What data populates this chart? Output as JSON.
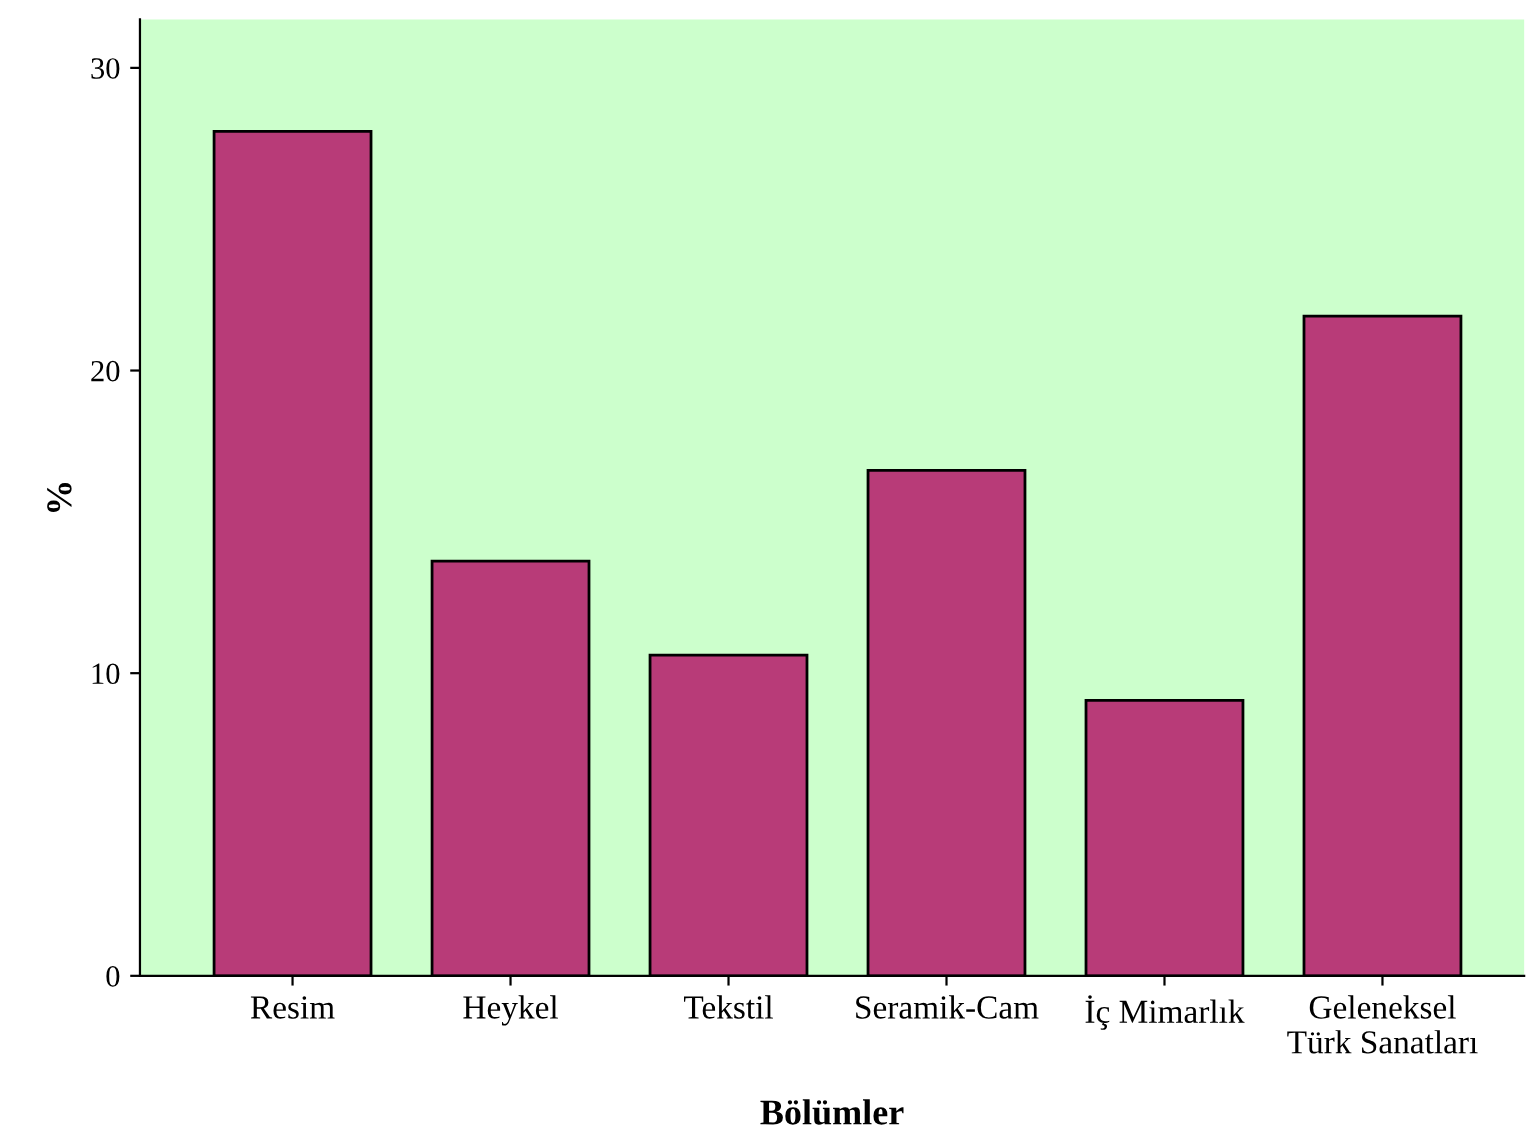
{
  "chart_data": {
    "type": "bar",
    "xlabel": "Bölümler",
    "ylabel": "%",
    "categories": [
      "Resim",
      "Heykel",
      "Tekstil",
      "Seramik-Cam",
      "İç Mimarlık",
      "Geleneksel\nTürk Sanatları"
    ],
    "values": [
      27.9,
      13.7,
      10.6,
      16.7,
      9.1,
      21.8
    ],
    "color": "#b83b78",
    "ylim": [
      0,
      31.6
    ],
    "yticks": [
      0,
      10,
      20,
      30
    ],
    "grid": false,
    "legend": false
  }
}
